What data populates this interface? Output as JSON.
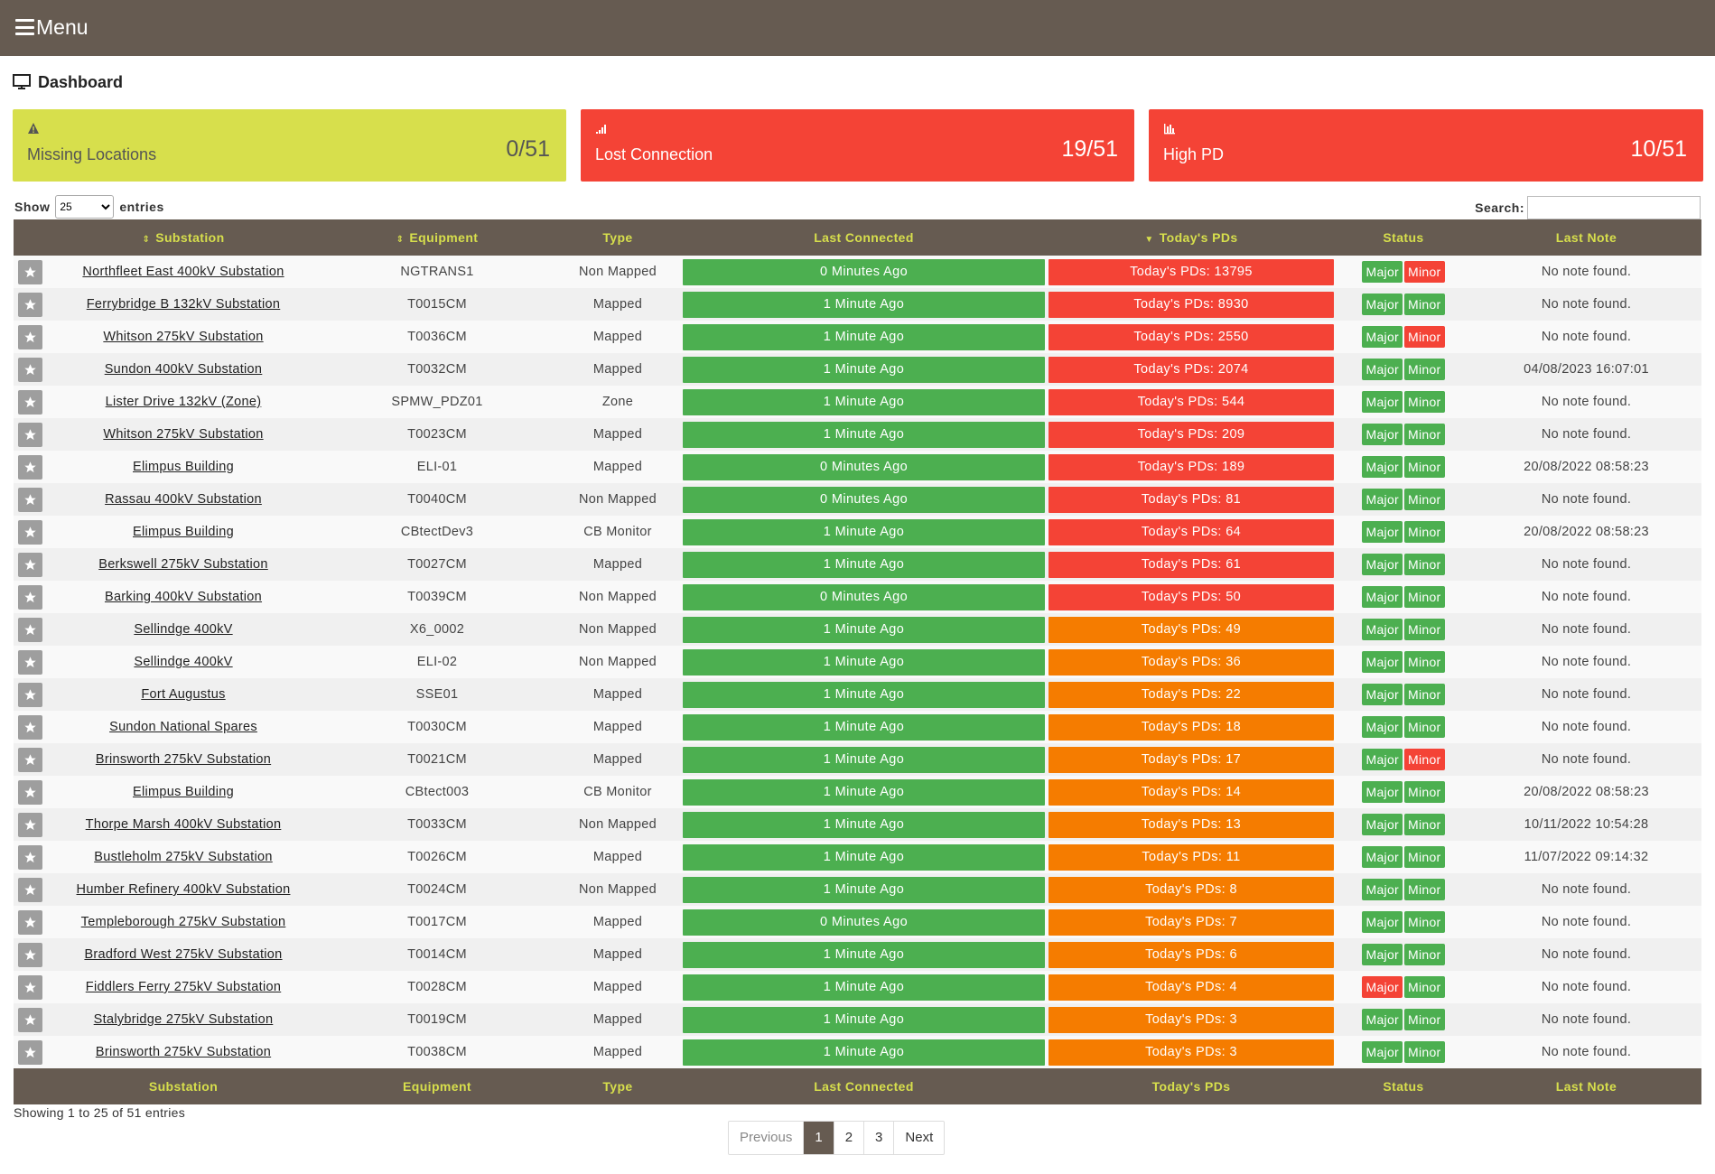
{
  "topbar": {
    "menu_label": "Menu"
  },
  "page": {
    "title": "Dashboard"
  },
  "cards": [
    {
      "label": "Missing Locations",
      "value": "0/51",
      "icon": "warning-icon",
      "color": "#d7df4c"
    },
    {
      "label": "Lost Connection",
      "value": "19/51",
      "icon": "signal-icon",
      "color": "#f44336"
    },
    {
      "label": "High PD",
      "value": "10/51",
      "icon": "bar-chart-icon",
      "color": "#f44336"
    }
  ],
  "controls": {
    "show": "Show",
    "entries": "entries",
    "length_value": "25",
    "search_label": "Search:"
  },
  "table": {
    "headers": [
      "Substation",
      "Equipment",
      "Type",
      "Last Connected",
      "Today's PDs",
      "Status",
      "Last Note"
    ],
    "status_labels": {
      "major": "Major",
      "minor": "Minor"
    },
    "rows": [
      {
        "substation": "Northfleet East 400kV Substation",
        "equipment": "NGTRANS1",
        "type": "Non Mapped",
        "last_connected": "0 Minutes Ago",
        "pds": "Today's PDs: 13795",
        "pd_level": "red",
        "major": "green",
        "minor": "red",
        "note": "No note found."
      },
      {
        "substation": "Ferrybridge B 132kV Substation",
        "equipment": "T0015CM",
        "type": "Mapped",
        "last_connected": "1 Minute Ago",
        "pds": "Today's PDs: 8930",
        "pd_level": "red",
        "major": "green",
        "minor": "green",
        "note": "No note found."
      },
      {
        "substation": "Whitson 275kV Substation",
        "equipment": "T0036CM",
        "type": "Mapped",
        "last_connected": "1 Minute Ago",
        "pds": "Today's PDs: 2550",
        "pd_level": "red",
        "major": "green",
        "minor": "red",
        "note": "No note found."
      },
      {
        "substation": "Sundon 400kV Substation",
        "equipment": "T0032CM",
        "type": "Mapped",
        "last_connected": "1 Minute Ago",
        "pds": "Today's PDs: 2074",
        "pd_level": "red",
        "major": "green",
        "minor": "green",
        "note": "04/08/2023 16:07:01"
      },
      {
        "substation": "Lister Drive 132kV (Zone)",
        "equipment": "SPMW_PDZ01",
        "type": "Zone",
        "last_connected": "1 Minute Ago",
        "pds": "Today's PDs: 544",
        "pd_level": "red",
        "major": "green",
        "minor": "green",
        "note": "No note found."
      },
      {
        "substation": "Whitson 275kV Substation",
        "equipment": "T0023CM",
        "type": "Mapped",
        "last_connected": "1 Minute Ago",
        "pds": "Today's PDs: 209",
        "pd_level": "red",
        "major": "green",
        "minor": "green",
        "note": "No note found."
      },
      {
        "substation": "Elimpus Building",
        "equipment": "ELI-01",
        "type": "Mapped",
        "last_connected": "0 Minutes Ago",
        "pds": "Today's PDs: 189",
        "pd_level": "red",
        "major": "green",
        "minor": "green",
        "note": "20/08/2022 08:58:23"
      },
      {
        "substation": "Rassau 400kV Substation",
        "equipment": "T0040CM",
        "type": "Non Mapped",
        "last_connected": "0 Minutes Ago",
        "pds": "Today's PDs: 81",
        "pd_level": "red",
        "major": "green",
        "minor": "green",
        "note": "No note found."
      },
      {
        "substation": "Elimpus Building",
        "equipment": "CBtectDev3",
        "type": "CB Monitor",
        "last_connected": "1 Minute Ago",
        "pds": "Today's PDs: 64",
        "pd_level": "red",
        "major": "green",
        "minor": "green",
        "note": "20/08/2022 08:58:23"
      },
      {
        "substation": "Berkswell 275kV Substation",
        "equipment": "T0027CM",
        "type": "Mapped",
        "last_connected": "1 Minute Ago",
        "pds": "Today's PDs: 61",
        "pd_level": "red",
        "major": "green",
        "minor": "green",
        "note": "No note found."
      },
      {
        "substation": "Barking 400kV Substation",
        "equipment": "T0039CM",
        "type": "Non Mapped",
        "last_connected": "0 Minutes Ago",
        "pds": "Today's PDs: 50",
        "pd_level": "red",
        "major": "green",
        "minor": "green",
        "note": "No note found."
      },
      {
        "substation": "Sellindge 400kV",
        "equipment": "X6_0002",
        "type": "Non Mapped",
        "last_connected": "1 Minute Ago",
        "pds": "Today's PDs: 49",
        "pd_level": "orange",
        "major": "green",
        "minor": "green",
        "note": "No note found."
      },
      {
        "substation": "Sellindge 400kV",
        "equipment": "ELI-02",
        "type": "Non Mapped",
        "last_connected": "1 Minute Ago",
        "pds": "Today's PDs: 36",
        "pd_level": "orange",
        "major": "green",
        "minor": "green",
        "note": "No note found."
      },
      {
        "substation": "Fort Augustus",
        "equipment": "SSE01",
        "type": "Mapped",
        "last_connected": "1 Minute Ago",
        "pds": "Today's PDs: 22",
        "pd_level": "orange",
        "major": "green",
        "minor": "green",
        "note": "No note found."
      },
      {
        "substation": "Sundon National Spares",
        "equipment": "T0030CM",
        "type": "Mapped",
        "last_connected": "1 Minute Ago",
        "pds": "Today's PDs: 18",
        "pd_level": "orange",
        "major": "green",
        "minor": "green",
        "note": "No note found."
      },
      {
        "substation": "Brinsworth 275kV Substation",
        "equipment": "T0021CM",
        "type": "Mapped",
        "last_connected": "1 Minute Ago",
        "pds": "Today's PDs: 17",
        "pd_level": "orange",
        "major": "green",
        "minor": "red",
        "note": "No note found."
      },
      {
        "substation": "Elimpus Building",
        "equipment": "CBtect003",
        "type": "CB Monitor",
        "last_connected": "1 Minute Ago",
        "pds": "Today's PDs: 14",
        "pd_level": "orange",
        "major": "green",
        "minor": "green",
        "note": "20/08/2022 08:58:23"
      },
      {
        "substation": "Thorpe Marsh 400kV Substation",
        "equipment": "T0033CM",
        "type": "Non Mapped",
        "last_connected": "1 Minute Ago",
        "pds": "Today's PDs: 13",
        "pd_level": "orange",
        "major": "green",
        "minor": "green",
        "note": "10/11/2022 10:54:28"
      },
      {
        "substation": "Bustleholm 275kV Substation",
        "equipment": "T0026CM",
        "type": "Mapped",
        "last_connected": "1 Minute Ago",
        "pds": "Today's PDs: 11",
        "pd_level": "orange",
        "major": "green",
        "minor": "green",
        "note": "11/07/2022 09:14:32"
      },
      {
        "substation": "Humber Refinery 400kV Substation",
        "equipment": "T0024CM",
        "type": "Non Mapped",
        "last_connected": "1 Minute Ago",
        "pds": "Today's PDs: 8",
        "pd_level": "orange",
        "major": "green",
        "minor": "green",
        "note": "No note found."
      },
      {
        "substation": "Templeborough 275kV Substation",
        "equipment": "T0017CM",
        "type": "Mapped",
        "last_connected": "0 Minutes Ago",
        "pds": "Today's PDs: 7",
        "pd_level": "orange",
        "major": "green",
        "minor": "green",
        "note": "No note found."
      },
      {
        "substation": "Bradford West 275kV Substation",
        "equipment": "T0014CM",
        "type": "Mapped",
        "last_connected": "1 Minute Ago",
        "pds": "Today's PDs: 6",
        "pd_level": "orange",
        "major": "green",
        "minor": "green",
        "note": "No note found."
      },
      {
        "substation": "Fiddlers Ferry 275kV Substation",
        "equipment": "T0028CM",
        "type": "Mapped",
        "last_connected": "1 Minute Ago",
        "pds": "Today's PDs: 4",
        "pd_level": "orange",
        "major": "red",
        "minor": "green",
        "note": "No note found."
      },
      {
        "substation": "Stalybridge 275kV Substation",
        "equipment": "T0019CM",
        "type": "Mapped",
        "last_connected": "1 Minute Ago",
        "pds": "Today's PDs: 3",
        "pd_level": "orange",
        "major": "green",
        "minor": "green",
        "note": "No note found."
      },
      {
        "substation": "Brinsworth 275kV Substation",
        "equipment": "T0038CM",
        "type": "Mapped",
        "last_connected": "1 Minute Ago",
        "pds": "Today's PDs: 3",
        "pd_level": "orange",
        "major": "green",
        "minor": "green",
        "note": "No note found."
      }
    ]
  },
  "footer": {
    "info": "Showing 1 to 25 of 51 entries",
    "pagination": {
      "previous": "Previous",
      "pages": [
        "1",
        "2",
        "3"
      ],
      "next": "Next",
      "active": "1"
    }
  },
  "colors": {
    "brand": "#665b51",
    "header_text": "#d7df4c",
    "green": "#4caf50",
    "red": "#f44336",
    "orange": "#f57c00",
    "yellow": "#d7df4c"
  }
}
